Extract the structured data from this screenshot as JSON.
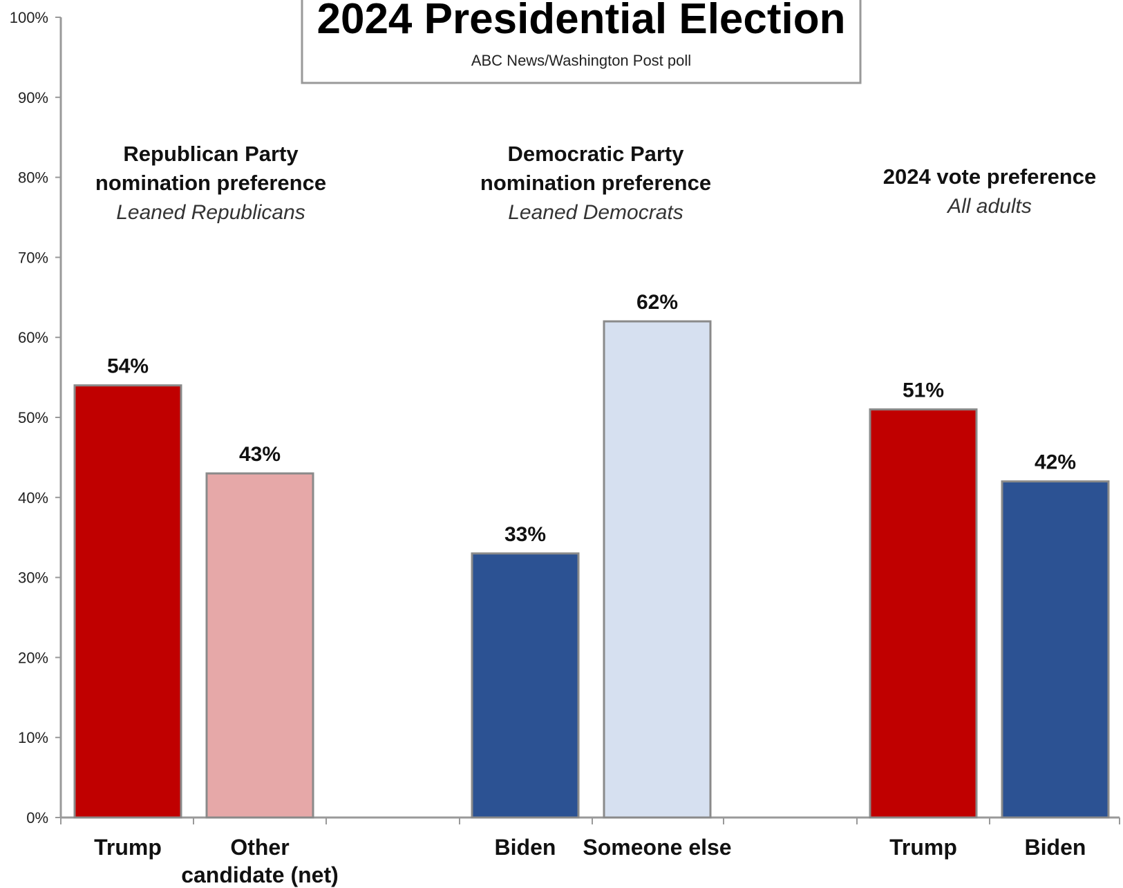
{
  "chart_data": {
    "type": "bar",
    "title": "2024 Presidential Election",
    "subtitle": "ABC News/Washington Post poll",
    "ylim": [
      0,
      100
    ],
    "yticks": [
      "0%",
      "10%",
      "20%",
      "30%",
      "40%",
      "50%",
      "60%",
      "70%",
      "80%",
      "90%",
      "100%"
    ],
    "grid": false,
    "groups": [
      {
        "title_lines": [
          "Republican Party",
          "nomination preference"
        ],
        "subtitle": "Leaned Republicans",
        "bars": [
          {
            "label": "Trump",
            "value": 54,
            "value_label": "54%",
            "color": "#c00000"
          },
          {
            "label": "Other candidate (net)",
            "label_lines": [
              "Other",
              "candidate (net)"
            ],
            "value": 43,
            "value_label": "43%",
            "color": "#e6a8a8"
          }
        ]
      },
      {
        "title_lines": [
          "Democratic Party",
          "nomination preference"
        ],
        "subtitle": "Leaned Democrats",
        "bars": [
          {
            "label": "Biden",
            "value": 33,
            "value_label": "33%",
            "color": "#2c5293"
          },
          {
            "label": "Someone else",
            "value": 62,
            "value_label": "62%",
            "color": "#d6e0f0"
          }
        ]
      },
      {
        "title_lines": [
          "2024 vote preference"
        ],
        "subtitle": "All adults",
        "bars": [
          {
            "label": "Trump",
            "value": 51,
            "value_label": "51%",
            "color": "#c00000"
          },
          {
            "label": "Biden",
            "value": 42,
            "value_label": "42%",
            "color": "#2c5293"
          }
        ]
      }
    ]
  }
}
